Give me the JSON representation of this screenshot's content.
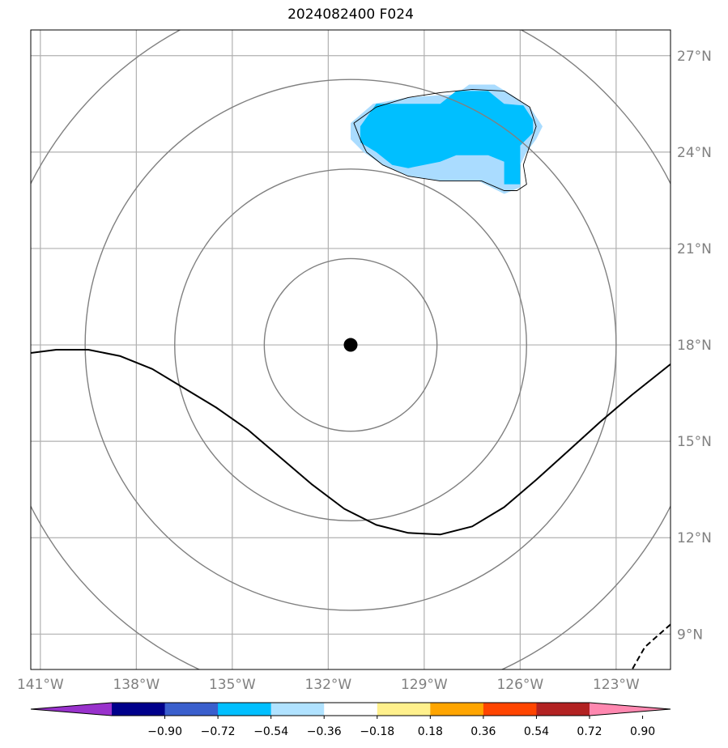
{
  "title": "2024082400 F024",
  "map": {
    "lon_range": [
      -141.3,
      -121.3
    ],
    "lat_range": [
      7.9,
      27.8
    ],
    "lat_ticks": [
      {
        "value": 27,
        "label": "27°N"
      },
      {
        "value": 24,
        "label": "24°N"
      },
      {
        "value": 21,
        "label": "21°N"
      },
      {
        "value": 18,
        "label": "18°N"
      },
      {
        "value": 15,
        "label": "15°N"
      },
      {
        "value": 12,
        "label": "12°N"
      },
      {
        "value": 9,
        "label": "9°N"
      }
    ],
    "lon_ticks": [
      {
        "value": -141,
        "label": "141°W"
      },
      {
        "value": -138,
        "label": "138°W"
      },
      {
        "value": -135,
        "label": "135°W"
      },
      {
        "value": -132,
        "label": "132°W"
      },
      {
        "value": -129,
        "label": "129°W"
      },
      {
        "value": -126,
        "label": "126°W"
      },
      {
        "value": -123,
        "label": "123°W"
      }
    ],
    "center": {
      "lon": -131.3,
      "lat": 18.0
    },
    "range_rings_deg": [
      2.7,
      5.5,
      8.3,
      11.2
    ],
    "colors": {
      "grid": "#b0b0b0",
      "ring": "#808080",
      "contour": "#000000",
      "fill_light": "#aadcff",
      "fill_strong": "#00bfff"
    },
    "solid_contour": [
      [
        -141.3,
        17.75
      ],
      [
        -140.5,
        17.85
      ],
      [
        -139.5,
        17.85
      ],
      [
        -138.5,
        17.65
      ],
      [
        -137.5,
        17.25
      ],
      [
        -136.5,
        16.65
      ],
      [
        -135.5,
        16.05
      ],
      [
        -134.5,
        15.35
      ],
      [
        -133.5,
        14.5
      ],
      [
        -132.5,
        13.65
      ],
      [
        -131.5,
        12.9
      ],
      [
        -130.5,
        12.4
      ],
      [
        -129.5,
        12.15
      ],
      [
        -128.5,
        12.1
      ],
      [
        -127.5,
        12.35
      ],
      [
        -126.5,
        12.95
      ],
      [
        -125.5,
        13.8
      ],
      [
        -124.5,
        14.7
      ],
      [
        -123.5,
        15.6
      ],
      [
        -122.5,
        16.45
      ],
      [
        -121.3,
        17.4
      ]
    ],
    "dashed_contour": [
      [
        -121.3,
        9.3
      ],
      [
        -122.1,
        8.6
      ],
      [
        -122.5,
        7.9
      ]
    ],
    "anomaly_outline": [
      [
        -131.2,
        24.9
      ],
      [
        -130.5,
        25.4
      ],
      [
        -129.5,
        25.7
      ],
      [
        -128.5,
        25.85
      ],
      [
        -127.5,
        25.95
      ],
      [
        -126.5,
        25.9
      ],
      [
        -125.7,
        25.4
      ],
      [
        -125.5,
        24.8
      ],
      [
        -125.7,
        24.2
      ],
      [
        -125.9,
        23.6
      ],
      [
        -125.8,
        23.0
      ],
      [
        -126.1,
        22.8
      ],
      [
        -126.5,
        22.8
      ],
      [
        -127.2,
        23.1
      ],
      [
        -128.0,
        23.1
      ],
      [
        -128.5,
        23.1
      ],
      [
        -129.5,
        23.25
      ],
      [
        -130.3,
        23.6
      ],
      [
        -130.8,
        24.0
      ],
      [
        -131.0,
        24.4
      ]
    ],
    "anomaly_light": [
      [
        -131.3,
        24.9
      ],
      [
        -130.6,
        25.5
      ],
      [
        -129.5,
        25.7
      ],
      [
        -128.8,
        25.75
      ],
      [
        -128.0,
        25.8
      ],
      [
        -127.6,
        26.1
      ],
      [
        -126.8,
        26.1
      ],
      [
        -126.3,
        25.8
      ],
      [
        -125.7,
        25.4
      ],
      [
        -125.3,
        24.8
      ],
      [
        -125.5,
        24.4
      ],
      [
        -125.8,
        24.0
      ],
      [
        -126.0,
        23.6
      ],
      [
        -126.0,
        22.9
      ],
      [
        -126.5,
        22.7
      ],
      [
        -126.9,
        22.9
      ],
      [
        -127.3,
        23.1
      ],
      [
        -128.0,
        23.1
      ],
      [
        -128.5,
        23.1
      ],
      [
        -129.5,
        23.25
      ],
      [
        -130.3,
        23.6
      ],
      [
        -130.9,
        24.0
      ],
      [
        -131.3,
        24.4
      ]
    ],
    "anomaly_strong": [
      [
        -131.0,
        24.8
      ],
      [
        -130.5,
        25.5
      ],
      [
        -129.5,
        25.5
      ],
      [
        -128.5,
        25.5
      ],
      [
        -128.0,
        25.9
      ],
      [
        -127.0,
        25.9
      ],
      [
        -126.5,
        25.5
      ],
      [
        -125.9,
        25.45
      ],
      [
        -125.6,
        25.0
      ],
      [
        -125.6,
        24.6
      ],
      [
        -126.0,
        24.2
      ],
      [
        -126.0,
        23.0
      ],
      [
        -126.5,
        23.0
      ],
      [
        -126.5,
        23.7
      ],
      [
        -127.0,
        23.9
      ],
      [
        -128.0,
        23.9
      ],
      [
        -128.5,
        23.7
      ],
      [
        -129.5,
        23.5
      ],
      [
        -130.0,
        23.6
      ],
      [
        -130.5,
        24.0
      ],
      [
        -131.0,
        24.3
      ]
    ]
  },
  "colorbar": {
    "colors": [
      "#9932cc",
      "#00008b",
      "#3a5fcd",
      "#00bfff",
      "#b0e2ff",
      "#ffffff",
      "#fff08c",
      "#ffa500",
      "#ff4500",
      "#b22222",
      "#ff88b0"
    ],
    "ticks": [
      {
        "value": -0.9,
        "label": "−0.90"
      },
      {
        "value": -0.72,
        "label": "−0.72"
      },
      {
        "value": -0.54,
        "label": "−0.54"
      },
      {
        "value": -0.36,
        "label": "−0.36"
      },
      {
        "value": -0.18,
        "label": "−0.18"
      },
      {
        "value": 0.18,
        "label": "0.18"
      },
      {
        "value": 0.36,
        "label": "0.36"
      },
      {
        "value": 0.54,
        "label": "0.54"
      },
      {
        "value": 0.72,
        "label": "0.72"
      },
      {
        "value": 0.9,
        "label": "0.90"
      }
    ]
  }
}
